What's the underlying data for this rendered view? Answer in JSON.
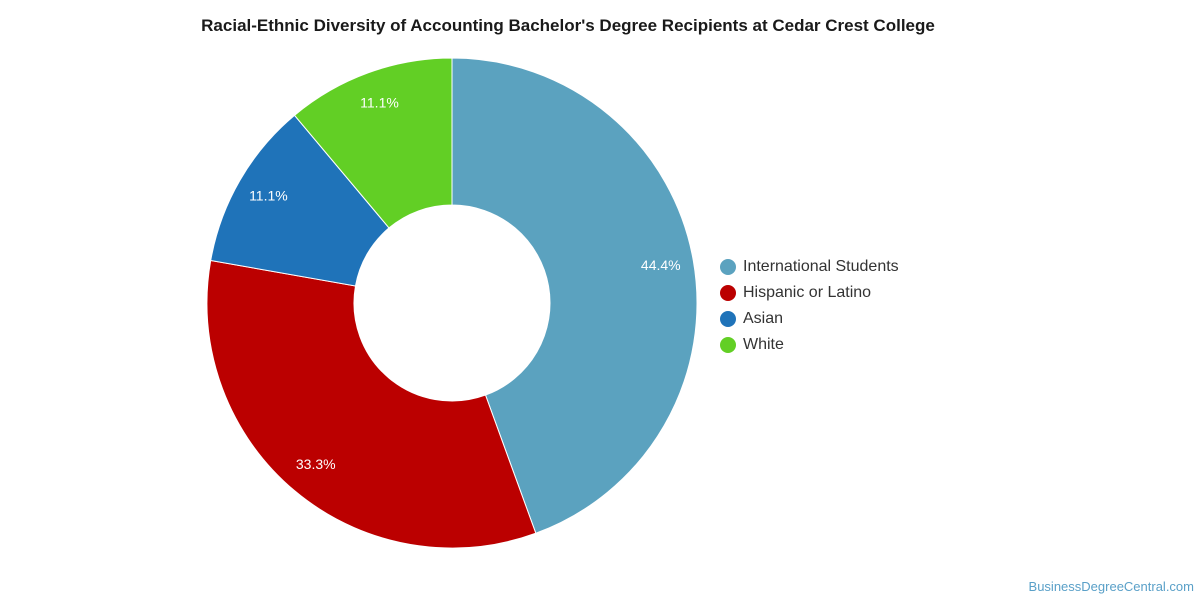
{
  "chart_data": {
    "type": "pie",
    "title": "Racial-Ethnic Diversity of Accounting Bachelor's Degree Recipients at Cedar Crest College",
    "donut": true,
    "categories": [
      "International Students",
      "Hispanic or Latino",
      "Asian",
      "White"
    ],
    "values": [
      44.4,
      33.3,
      11.1,
      11.1
    ],
    "labels": [
      "44.4%",
      "33.3%",
      "11.1%",
      "11.1%"
    ],
    "colors": [
      "#5ba2bf",
      "#bb0000",
      "#1f73b9",
      "#62cf25"
    ],
    "legend_position": "right"
  },
  "footer": {
    "source": "BusinessDegreeCentral.com"
  }
}
